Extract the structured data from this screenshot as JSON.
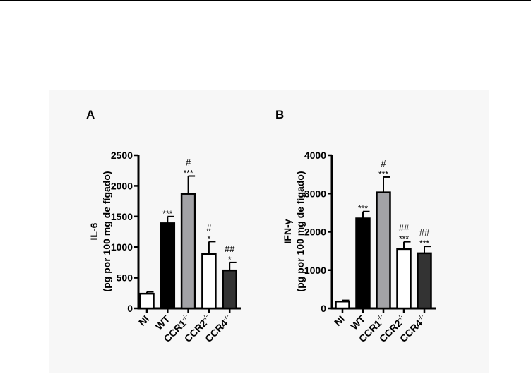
{
  "chart_data": [
    {
      "type": "bar",
      "panel_label": "A",
      "title": "",
      "ylabel": "IL-6",
      "ylabel_units": "(pg por 100 mg de fígado)",
      "categories": [
        "NI",
        "WT",
        "CCR1-/-",
        "CCR2-/-",
        "CCR4-/-"
      ],
      "values": [
        240,
        1390,
        1870,
        890,
        620
      ],
      "errors": [
        30,
        110,
        290,
        200,
        130
      ],
      "significance": [
        "",
        "***",
        "***",
        "*",
        "*"
      ],
      "significance_vs_wt": [
        "",
        "",
        "#",
        "#",
        "##"
      ],
      "colors": [
        "#ffffff",
        "#000000",
        "#a2a2a6",
        "#ffffff",
        "#333333"
      ],
      "ylim": [
        0,
        2500
      ],
      "yticks": [
        0,
        500,
        1000,
        1500,
        2000,
        2500
      ],
      "grid": false
    },
    {
      "type": "bar",
      "panel_label": "B",
      "title": "",
      "ylabel": "IFN-γ",
      "ylabel_units": "(pg por 100 mg de fígado)",
      "categories": [
        "NI",
        "WT",
        "CCR1-/-",
        "CCR2-/-",
        "CCR4-/-"
      ],
      "values": [
        180,
        2350,
        3030,
        1550,
        1440
      ],
      "errors": [
        30,
        180,
        400,
        190,
        180
      ],
      "significance": [
        "",
        "***",
        "***",
        "***",
        "***"
      ],
      "significance_vs_wt": [
        "",
        "",
        "#",
        "##",
        "##"
      ],
      "colors": [
        "#ffffff",
        "#000000",
        "#a2a2a6",
        "#ffffff",
        "#333333"
      ],
      "ylim": [
        0,
        4000
      ],
      "yticks": [
        0,
        1000,
        2000,
        3000,
        4000
      ],
      "grid": false
    }
  ]
}
